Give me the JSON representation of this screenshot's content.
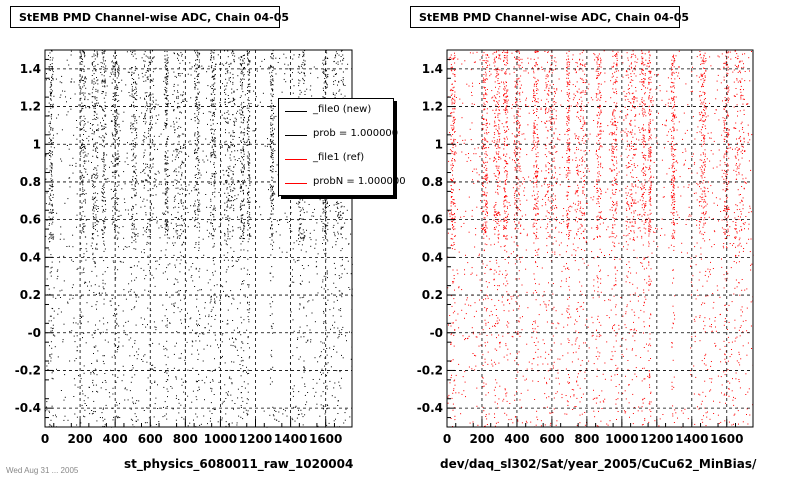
{
  "footer": "Wed Aug 31 ... 2005",
  "legend": {
    "entries": [
      {
        "label": "_file0 (new)",
        "color": "#000000"
      },
      {
        "label": "prob = 1.000000",
        "color": "#000000"
      },
      {
        "label": "_file1 (ref)",
        "color": "#ff0000"
      },
      {
        "label": "probN = 1.000000",
        "color": "#ff0000"
      }
    ]
  },
  "chart_data": [
    {
      "type": "scatter",
      "title": "StEMB PMD Channel-wise ADC, Chain 04-05",
      "xlabel": "st_physics_6080011_raw_1020004",
      "ylabel": "",
      "xlim": [
        0,
        1750
      ],
      "ylim": [
        -0.5,
        1.5
      ],
      "xticks": [
        "0",
        "200",
        "400",
        "600",
        "800",
        "1000",
        "1200",
        "1400",
        "1600"
      ],
      "yticks": [
        "-0.4",
        "-0.2",
        "-0",
        "0.2",
        "0.4",
        "0.6",
        "0.8",
        "1",
        "1.2",
        "1.4"
      ],
      "grid": true,
      "color": "#000000",
      "seed": 11,
      "density_note": "uniform noise with dense vertical bands above 0.5"
    },
    {
      "type": "scatter",
      "title": "StEMB PMD Channel-wise ADC, Chain 04-05",
      "xlabel": "dev/daq_sl302/Sat/year_2005/CuCu62_MinBias/",
      "ylabel": "",
      "xlim": [
        0,
        1750
      ],
      "ylim": [
        -0.5,
        1.5
      ],
      "xticks": [
        "0",
        "200",
        "400",
        "600",
        "800",
        "1000",
        "1200",
        "1400",
        "1600"
      ],
      "yticks": [
        "-0.4",
        "-0.2",
        "-0",
        "0.2",
        "0.4",
        "0.6",
        "0.8",
        "1",
        "1.2",
        "1.4"
      ],
      "grid": true,
      "color": "#ff0000",
      "seed": 29,
      "density_note": "uniform noise with dense vertical bands above 0.5"
    }
  ]
}
